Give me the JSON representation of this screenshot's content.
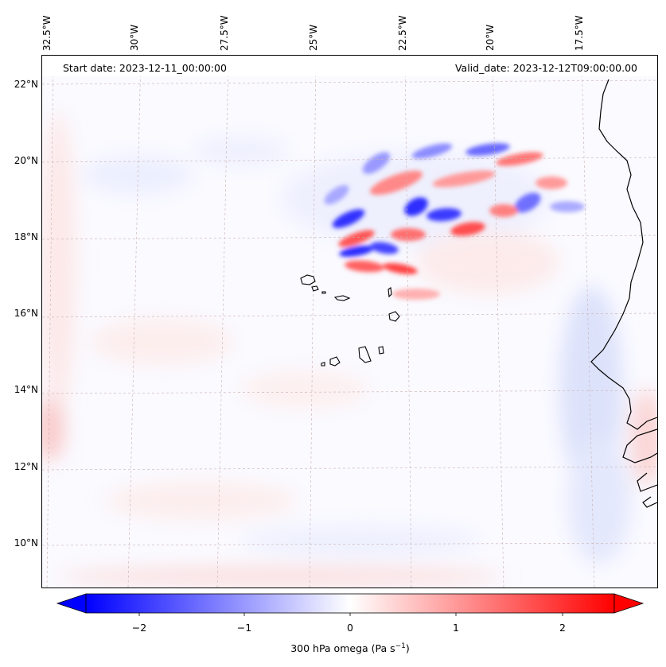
{
  "header": {
    "start_date": "Start date: 2023-12-11_00:00:00",
    "valid_date": "Valid_date: 2023-12-12T09:00:00.00"
  },
  "axes": {
    "lon_labels": [
      "32.5°W",
      "30°W",
      "27.5°W",
      "25°W",
      "22.5°W",
      "20°W",
      "17.5°W"
    ],
    "lat_labels": [
      "22°N",
      "20°N",
      "18°N",
      "16°N",
      "14°N",
      "12°N",
      "10°N"
    ]
  },
  "colorbar": {
    "label": "300 hPa omega (Pa s",
    "label_sup": "−1",
    "label_end": ")",
    "ticks": [
      "−2",
      "−1",
      "0",
      "1",
      "2"
    ],
    "min_color": "#0000ff",
    "mid_color": "#ffffff",
    "max_color": "#ff0000"
  },
  "chart_data": {
    "type": "heatmap",
    "variable": "300 hPa omega",
    "units": "Pa s^-1",
    "colormap": "bwr",
    "vmin": -2.5,
    "vmax": 2.5,
    "lon_range": [
      -33.0,
      -15.0
    ],
    "lat_range": [
      8.8,
      22.8
    ],
    "features": [
      {
        "name": "Cape Verde islands",
        "lat": 16.0,
        "lon": -24.0
      }
    ]
  }
}
